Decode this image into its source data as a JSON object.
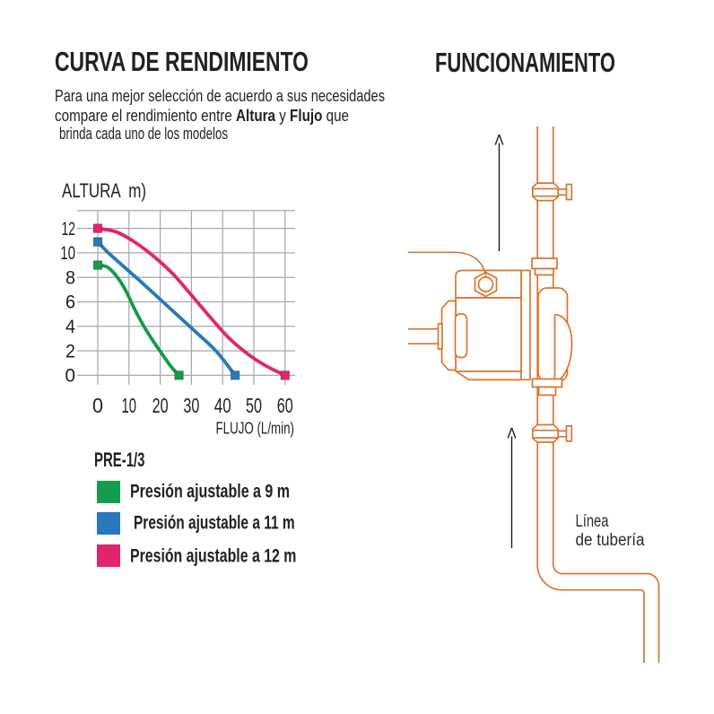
{
  "left": {
    "title": "CURVA DE RENDIMIENTO",
    "intro": {
      "line1": "Para una mejor selección de acuerdo a sus necesidades",
      "line2_parts": [
        "compare el rendimiento entre ",
        "Altura",
        " y ",
        "Flujo",
        " que"
      ],
      "line3": "brinda cada uno de los modelos"
    },
    "legend": {
      "model": "PRE-1/3",
      "items": [
        {
          "label": "Presión ajustable a 9 m",
          "color": "#149c4c"
        },
        {
          "label": "Presión ajustable a 11 m",
          "color": "#2779bb"
        },
        {
          "label": "Presión ajustable a 12 m",
          "color": "#e2246f"
        }
      ]
    }
  },
  "right": {
    "title": "FUNCIONAMIENTO",
    "pipe_label_line1": "Línea",
    "pipe_label_line2": "de tubería",
    "colors": {
      "pipe": "#d9752f",
      "arrow": "#1c1c1c",
      "label": "#2b2b2b"
    }
  },
  "chart_data": {
    "type": "line",
    "title": "CURVA DE RENDIMIENTO",
    "xlabel": "FLUJO (L/min)",
    "ylabel": "ALTURA  m)",
    "x_ticks": [
      0,
      10,
      20,
      30,
      40,
      50,
      60
    ],
    "y_ticks": [
      0,
      2,
      4,
      6,
      8,
      10,
      12
    ],
    "xlim": [
      0,
      60
    ],
    "ylim": [
      0,
      12
    ],
    "grid": true,
    "grid_color": "#a8a8a8",
    "series": [
      {
        "name": "Presión ajustable a 9 m",
        "color": "#149c4c",
        "points": [
          [
            0,
            9
          ],
          [
            3,
            8.85
          ],
          [
            6,
            8.1
          ],
          [
            9,
            6.9
          ],
          [
            12,
            5.3
          ],
          [
            15,
            3.9
          ],
          [
            18,
            2.7
          ],
          [
            21,
            1.6
          ],
          [
            23.5,
            0.7
          ],
          [
            26,
            0
          ]
        ]
      },
      {
        "name": "Presión ajustable a 11 m",
        "color": "#2779bb",
        "points": [
          [
            0,
            10.9
          ],
          [
            3.2,
            10.05
          ],
          [
            8,
            8.95
          ],
          [
            14,
            7.6
          ],
          [
            20,
            6.2
          ],
          [
            26,
            4.8
          ],
          [
            32,
            3.4
          ],
          [
            38,
            1.95
          ],
          [
            44,
            0
          ]
        ]
      },
      {
        "name": "Presión ajustable a 12 m",
        "color": "#e2246f",
        "points": [
          [
            0,
            12
          ],
          [
            6,
            11.7
          ],
          [
            12,
            10.85
          ],
          [
            18,
            9.7
          ],
          [
            24,
            8.3
          ],
          [
            30,
            6.55
          ],
          [
            36,
            4.75
          ],
          [
            42,
            3.05
          ],
          [
            48,
            1.75
          ],
          [
            54,
            0.75
          ],
          [
            60,
            0
          ]
        ]
      }
    ]
  }
}
